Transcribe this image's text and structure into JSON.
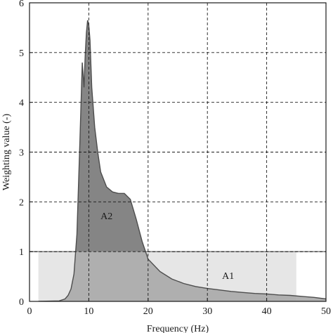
{
  "chart_data": {
    "type": "area",
    "xlabel": "Frequency (Hz)",
    "ylabel": "Weighting value (-)",
    "xlim": [
      0,
      50
    ],
    "ylim": [
      0,
      6
    ],
    "xticks": [
      0,
      10,
      20,
      30,
      40,
      50
    ],
    "yticks": [
      0,
      1,
      2,
      3,
      4,
      5,
      6
    ],
    "grid": "dashed",
    "colors": {
      "band_fill": "#e6e6e6",
      "band_line": "#8c8c8c",
      "curve_fill": "#a8a8a8",
      "curve_fill_above_band": "#858585",
      "curve_line": "#4d4d4d"
    },
    "band": {
      "name": "A1",
      "x": [
        1.5,
        45
      ],
      "y": [
        0,
        1
      ]
    },
    "annotations": [
      {
        "text": "A2",
        "x": 13,
        "y": 1.65
      },
      {
        "text": "A1",
        "x": 33.5,
        "y": 0.45
      }
    ],
    "curve": {
      "x": [
        1.5,
        5,
        6,
        6.5,
        7,
        7.5,
        8,
        8.5,
        8.9,
        9.2,
        9.4,
        9.6,
        9.8,
        10.0,
        10.2,
        10.5,
        11,
        11.5,
        12,
        13,
        14,
        15,
        16,
        17,
        18,
        19,
        20,
        22,
        24,
        26,
        28,
        30,
        32,
        34,
        36,
        38,
        40,
        42,
        44,
        46,
        48,
        50
      ],
      "y": [
        0,
        0.01,
        0.05,
        0.12,
        0.25,
        0.55,
        1.35,
        3.2,
        4.8,
        4.3,
        4.95,
        5.4,
        5.65,
        5.55,
        5.25,
        4.3,
        3.5,
        3.0,
        2.6,
        2.3,
        2.2,
        2.17,
        2.17,
        2.05,
        1.65,
        1.2,
        0.85,
        0.6,
        0.45,
        0.36,
        0.3,
        0.26,
        0.23,
        0.2,
        0.18,
        0.16,
        0.15,
        0.13,
        0.12,
        0.1,
        0.08,
        0.05
      ]
    }
  }
}
